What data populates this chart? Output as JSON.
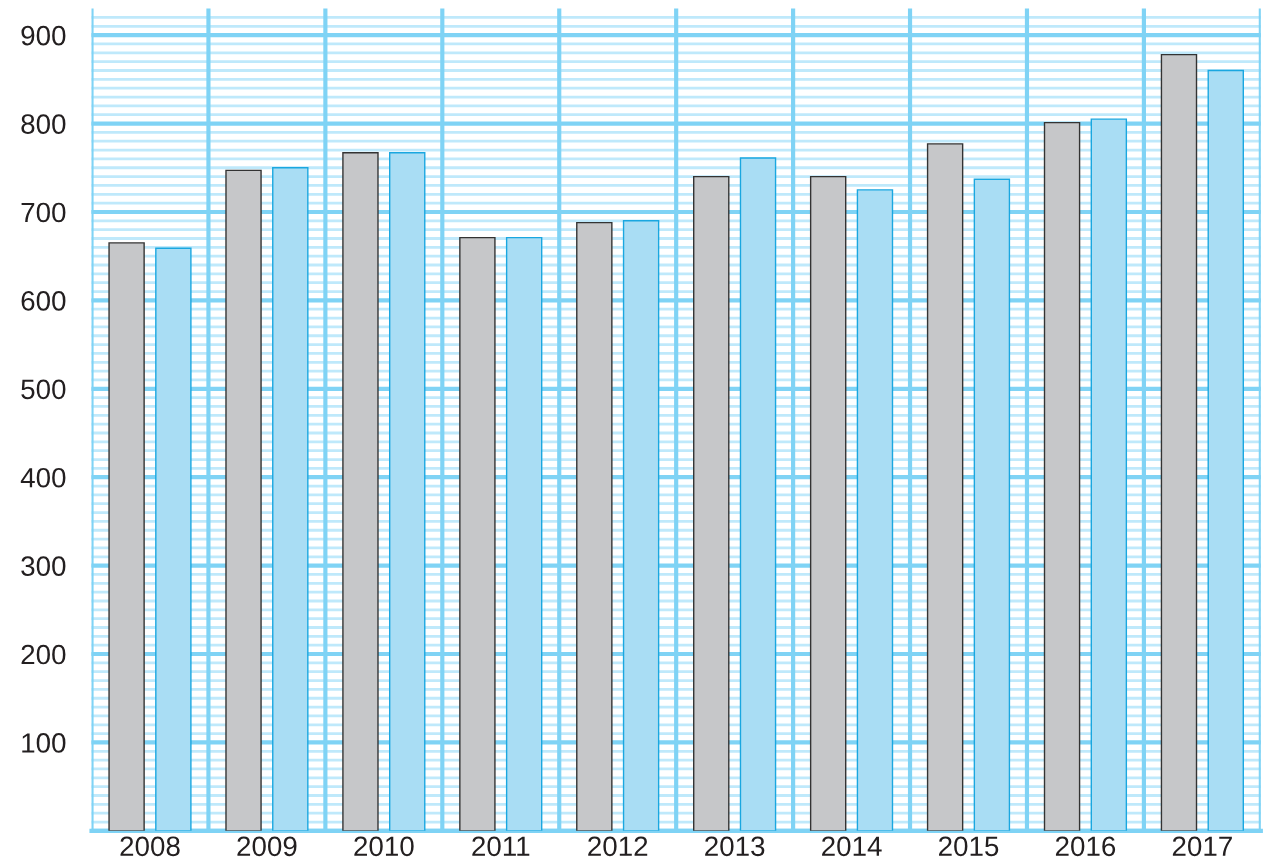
{
  "chart_data": {
    "type": "bar",
    "categories": [
      "2008",
      "2009",
      "2010",
      "2011",
      "2012",
      "2013",
      "2014",
      "2015",
      "2016",
      "2017"
    ],
    "series": [
      {
        "color": "#c6c7c9",
        "values": [
          665,
          747,
          767,
          671,
          688,
          740,
          740,
          777,
          801,
          878
        ]
      },
      {
        "color": "#a9ddf4",
        "values": [
          659,
          750,
          767,
          671,
          690,
          761,
          725,
          737,
          805,
          860
        ]
      }
    ],
    "ylim": [
      0,
      930
    ],
    "yticks": [
      {
        "value": 0,
        "label": null
      },
      100,
      200,
      300,
      400,
      500,
      600,
      700,
      800,
      900
    ],
    "grid": true,
    "legend": false
  }
}
